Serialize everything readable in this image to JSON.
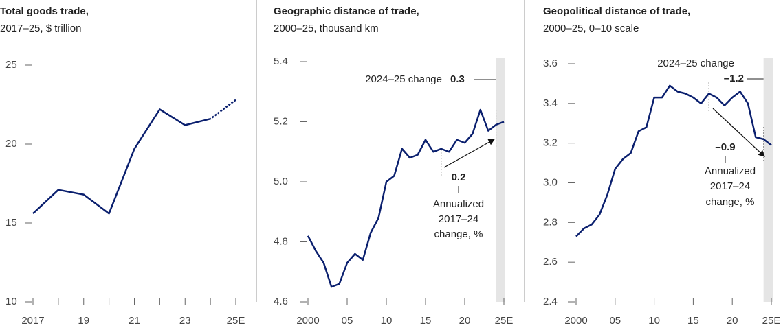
{
  "chart_data": [
    {
      "type": "line",
      "title": "Total goods trade,",
      "subtitle": "2017–25, $ trillion",
      "x": [
        2017,
        2018,
        2019,
        2020,
        2021,
        2022,
        2023,
        2024,
        2025
      ],
      "series": [
        {
          "color": "#0a1f6e",
          "values": [
            15.6,
            17.1,
            16.8,
            15.6,
            19.7,
            22.2,
            21.2,
            21.6,
            22.8
          ]
        }
      ],
      "dashed_from_x": 2024,
      "xlim": [
        2017,
        2025
      ],
      "xticks": [
        2017,
        {
          "value": 2019,
          "label": "19"
        },
        {
          "value": 2021,
          "label": "21"
        },
        {
          "value": 2023,
          "label": "23"
        },
        {
          "value": 2025,
          "label": "25E"
        }
      ],
      "xminor_ticks": [
        2018,
        2020,
        2022,
        2024
      ],
      "ylim": [
        10,
        25
      ],
      "yticks": [
        10,
        15,
        20,
        25
      ]
    },
    {
      "type": "line",
      "title": "Geographic distance of trade,",
      "subtitle": "2000–25, thousand km",
      "x": [
        2000,
        2001,
        2002,
        2003,
        2004,
        2005,
        2006,
        2007,
        2008,
        2009,
        2010,
        2011,
        2012,
        2013,
        2014,
        2015,
        2016,
        2017,
        2018,
        2019,
        2020,
        2021,
        2022,
        2023,
        2024,
        2025
      ],
      "series": [
        {
          "color": "#0a1f6e",
          "values": [
            4.82,
            4.77,
            4.73,
            4.65,
            4.66,
            4.73,
            4.76,
            4.74,
            4.83,
            4.88,
            5.0,
            5.02,
            5.11,
            5.08,
            5.09,
            5.14,
            5.1,
            5.11,
            5.1,
            5.14,
            5.13,
            5.16,
            5.24,
            5.17,
            5.19,
            5.2
          ]
        }
      ],
      "shaded_x": [
        2024,
        2025
      ],
      "period_x": [
        2017,
        2024
      ],
      "annotations": {
        "change_label": "2024–25 change",
        "change_value": "0.3",
        "annualized_value": "0.2",
        "annualized_lines": [
          "Annualized",
          "2017–24",
          "change, %"
        ]
      },
      "xlim": [
        2000,
        2025
      ],
      "xticks": [
        2000,
        {
          "value": 2005,
          "label": "05"
        },
        {
          "value": 2010,
          "label": "10"
        },
        {
          "value": 2015,
          "label": "15"
        },
        {
          "value": 2020,
          "label": "20"
        },
        {
          "value": 2025,
          "label": "25E"
        }
      ],
      "ylim": [
        4.6,
        5.4
      ],
      "yticks": [
        4.6,
        4.8,
        {
          "value": 5,
          "label": "5.0"
        },
        5.2,
        5.4
      ]
    },
    {
      "type": "line",
      "title": "Geopolitical distance of trade,",
      "subtitle": "2000–25, 0–10 scale",
      "x": [
        2000,
        2001,
        2002,
        2003,
        2004,
        2005,
        2006,
        2007,
        2008,
        2009,
        2010,
        2011,
        2012,
        2013,
        2014,
        2015,
        2016,
        2017,
        2018,
        2019,
        2020,
        2021,
        2022,
        2023,
        2024,
        2025
      ],
      "series": [
        {
          "color": "#0a1f6e",
          "values": [
            2.73,
            2.77,
            2.79,
            2.84,
            2.94,
            3.07,
            3.12,
            3.15,
            3.26,
            3.28,
            3.43,
            3.43,
            3.49,
            3.46,
            3.45,
            3.43,
            3.4,
            3.45,
            3.43,
            3.39,
            3.43,
            3.46,
            3.4,
            3.23,
            3.22,
            3.19
          ]
        }
      ],
      "shaded_x": [
        2024,
        2025
      ],
      "period_x": [
        2017,
        2024
      ],
      "annotations": {
        "change_label": "2024–25 change",
        "change_value": "–1.2",
        "annualized_value": "–0.9",
        "annualized_lines": [
          "Annualized",
          "2017–24",
          "change, %"
        ]
      },
      "xlim": [
        2000,
        2025
      ],
      "xticks": [
        2000,
        {
          "value": 2005,
          "label": "05"
        },
        {
          "value": 2010,
          "label": "10"
        },
        {
          "value": 2015,
          "label": "15"
        },
        {
          "value": 2020,
          "label": "20"
        },
        {
          "value": 2025,
          "label": "25E"
        }
      ],
      "ylim": [
        2.4,
        3.6
      ],
      "yticks": [
        2.4,
        2.6,
        2.8,
        {
          "value": 3,
          "label": "3.0"
        },
        3.2,
        3.4,
        3.6
      ]
    }
  ]
}
